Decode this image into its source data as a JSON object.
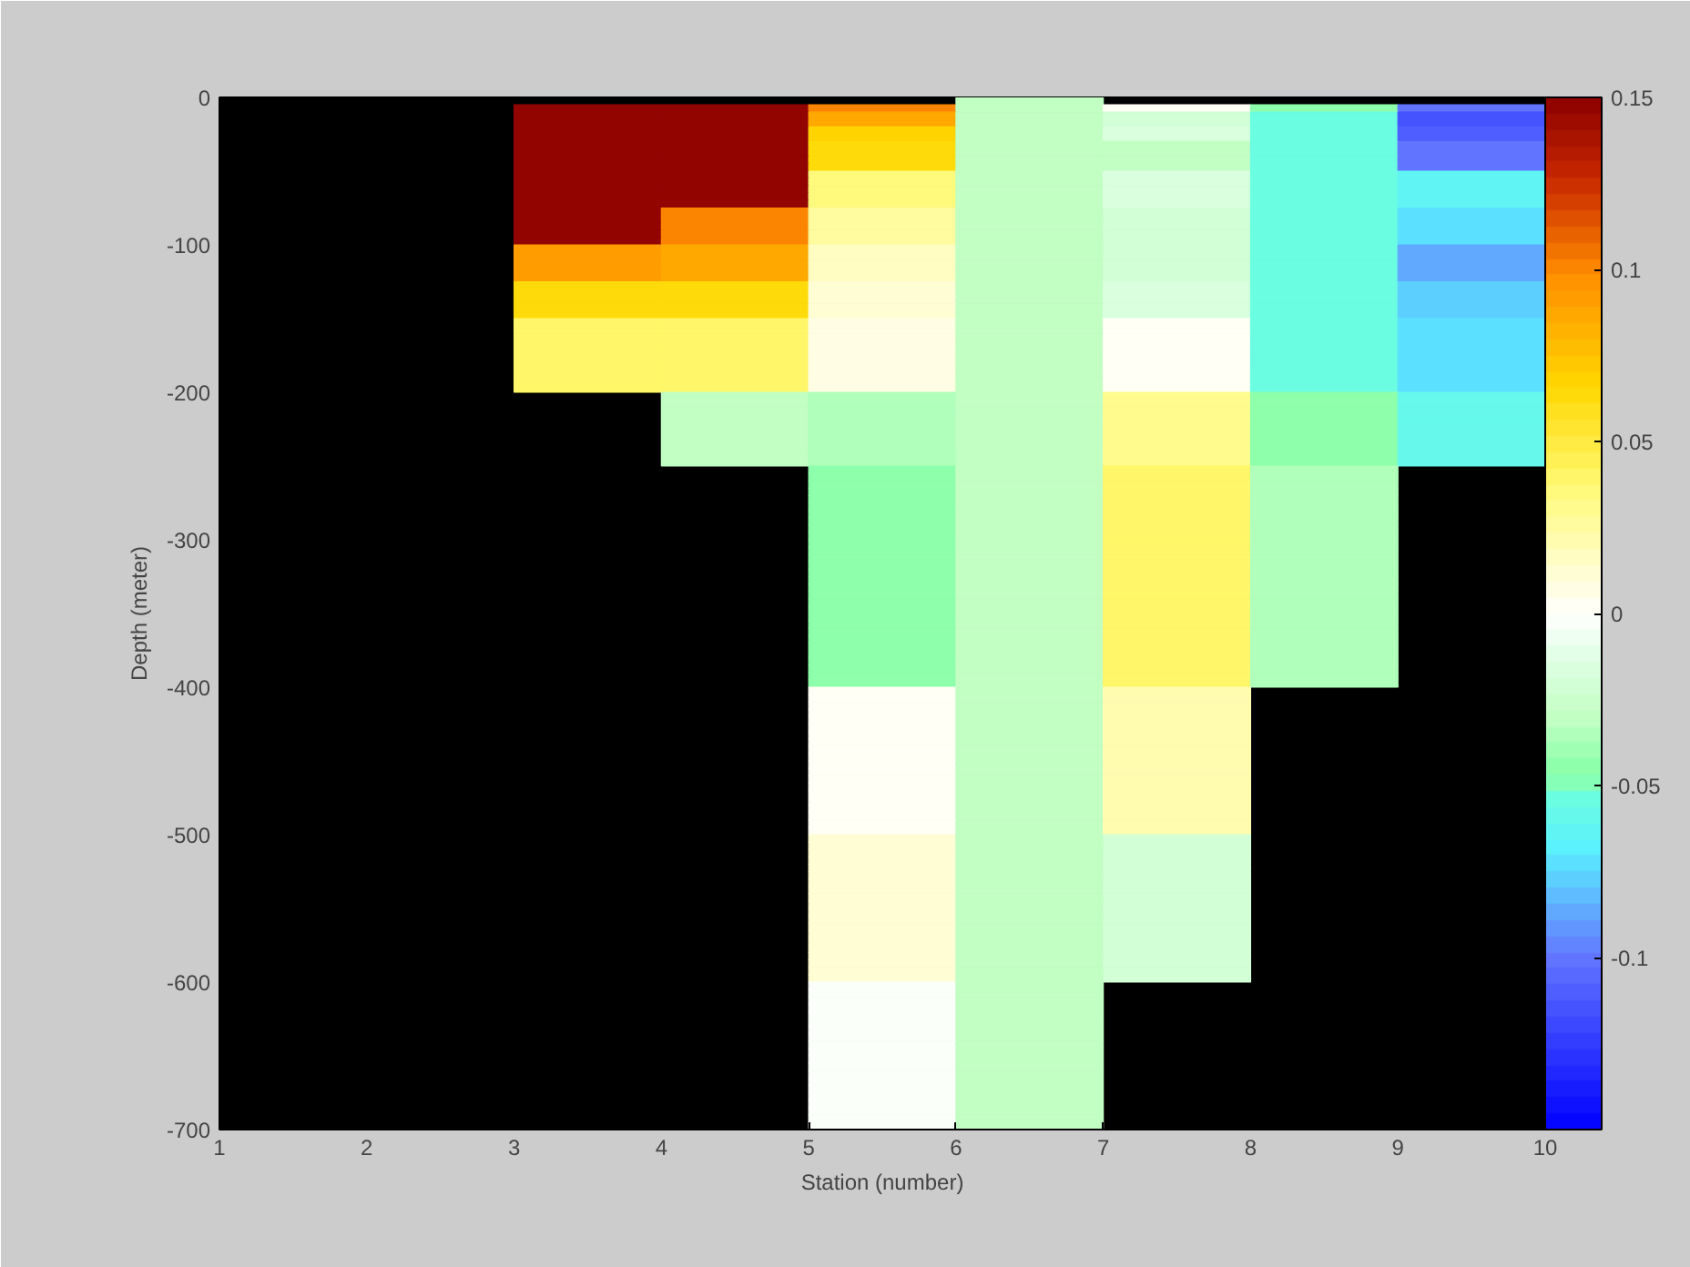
{
  "chart_data": {
    "type": "heatmap",
    "xlabel": "Station (number)",
    "ylabel": "Depth (meter)",
    "xlim": [
      1,
      10
    ],
    "xticks": [
      1,
      2,
      3,
      4,
      5,
      6,
      7,
      8,
      9,
      10
    ],
    "ylim": [
      -700,
      0
    ],
    "yticks": [
      -700,
      -600,
      -500,
      -400,
      -300,
      -200,
      -100,
      0
    ],
    "clim": [
      -0.15,
      0.15
    ],
    "cticks": [
      -0.1,
      -0.05,
      0,
      0.05,
      0.1,
      0.15
    ],
    "cells": [
      [
        null,
        null,
        null,
        null,
        null,
        -0.03,
        null,
        null,
        null
      ],
      [
        null,
        null,
        0.15,
        0.15,
        0.1,
        -0.03,
        0,
        -0.045,
        -0.1
      ],
      [
        null,
        null,
        0.15,
        0.15,
        0.085,
        -0.03,
        -0.02,
        -0.055,
        -0.115
      ],
      [
        null,
        null,
        0.15,
        0.15,
        0.085,
        -0.03,
        -0.02,
        -0.055,
        -0.115
      ],
      [
        null,
        null,
        0.15,
        0.15,
        0.07,
        -0.03,
        -0.015,
        -0.055,
        -0.11
      ],
      [
        null,
        null,
        0.15,
        0.15,
        0.07,
        -0.03,
        -0.015,
        -0.055,
        -0.11
      ],
      [
        null,
        null,
        0.15,
        0.15,
        0.065,
        -0.03,
        -0.03,
        -0.055,
        -0.1
      ],
      [
        null,
        null,
        0.15,
        0.15,
        0.065,
        -0.03,
        -0.03,
        -0.055,
        -0.1
      ],
      [
        null,
        null,
        0.15,
        0.15,
        0.065,
        -0.03,
        -0.03,
        -0.055,
        -0.1
      ],
      [
        null,
        null,
        0.15,
        0.15,
        0.065,
        -0.03,
        -0.03,
        -0.055,
        -0.1
      ],
      [
        null,
        null,
        0.15,
        0.15,
        0.035,
        -0.03,
        -0.015,
        -0.055,
        -0.065
      ],
      [
        null,
        null,
        0.15,
        0.15,
        0.035,
        -0.03,
        -0.015,
        -0.055,
        -0.065
      ],
      [
        null,
        null,
        0.15,
        0.15,
        0.035,
        -0.03,
        -0.015,
        -0.055,
        -0.065
      ],
      [
        null,
        null,
        0.15,
        0.15,
        0.035,
        -0.03,
        -0.015,
        -0.055,
        -0.065
      ],
      [
        null,
        null,
        0.15,
        0.15,
        0.035,
        -0.03,
        -0.015,
        -0.055,
        -0.065
      ],
      [
        null,
        null,
        0.15,
        0.1,
        0.025,
        -0.03,
        -0.02,
        -0.055,
        -0.075
      ],
      [
        null,
        null,
        0.15,
        0.1,
        0.025,
        -0.03,
        -0.02,
        -0.055,
        -0.075
      ],
      [
        null,
        null,
        0.15,
        0.1,
        0.025,
        -0.03,
        -0.02,
        -0.055,
        -0.075
      ],
      [
        null,
        null,
        0.15,
        0.1,
        0.025,
        -0.03,
        -0.02,
        -0.055,
        -0.075
      ],
      [
        null,
        null,
        0.15,
        0.1,
        0.025,
        -0.03,
        -0.02,
        -0.055,
        -0.075
      ],
      [
        null,
        null,
        0.09,
        0.085,
        0.017,
        -0.03,
        -0.02,
        -0.055,
        -0.085
      ],
      [
        null,
        null,
        0.09,
        0.085,
        0.017,
        -0.03,
        -0.02,
        -0.055,
        -0.085
      ],
      [
        null,
        null,
        0.09,
        0.085,
        0.017,
        -0.03,
        -0.02,
        -0.055,
        -0.085
      ],
      [
        null,
        null,
        0.09,
        0.085,
        0.017,
        -0.03,
        -0.02,
        -0.055,
        -0.085
      ],
      [
        null,
        null,
        0.09,
        0.085,
        0.017,
        -0.03,
        -0.02,
        -0.055,
        -0.085
      ],
      [
        null,
        null,
        0.065,
        0.065,
        0.012,
        -0.03,
        -0.015,
        -0.055,
        -0.078
      ],
      [
        null,
        null,
        0.065,
        0.065,
        0.012,
        -0.03,
        -0.015,
        -0.055,
        -0.078
      ],
      [
        null,
        null,
        0.065,
        0.065,
        0.012,
        -0.03,
        -0.015,
        -0.055,
        -0.078
      ],
      [
        null,
        null,
        0.065,
        0.065,
        0.012,
        -0.03,
        -0.015,
        -0.055,
        -0.078
      ],
      [
        null,
        null,
        0.065,
        0.065,
        0.012,
        -0.03,
        -0.015,
        -0.055,
        -0.078
      ],
      [
        null,
        null,
        0.04,
        0.04,
        0.005,
        -0.03,
        0.003,
        -0.052,
        -0.072
      ],
      [
        null,
        null,
        0.04,
        0.04,
        0.005,
        -0.03,
        0.003,
        -0.052,
        -0.072
      ],
      [
        null,
        null,
        0.04,
        0.04,
        0.005,
        -0.03,
        0.003,
        -0.052,
        -0.072
      ],
      [
        null,
        null,
        0.04,
        0.04,
        0.005,
        -0.03,
        0.003,
        -0.052,
        -0.072
      ],
      [
        null,
        null,
        0.04,
        0.04,
        0.005,
        -0.03,
        0.003,
        -0.052,
        -0.072
      ],
      [
        null,
        null,
        0.04,
        0.04,
        0.005,
        -0.03,
        0.003,
        -0.052,
        -0.072
      ],
      [
        null,
        null,
        0.04,
        0.04,
        0.005,
        -0.03,
        0.003,
        -0.052,
        -0.072
      ],
      [
        null,
        null,
        0.04,
        0.04,
        0.005,
        -0.03,
        0.003,
        -0.052,
        -0.072
      ],
      [
        null,
        null,
        0.04,
        0.04,
        0.005,
        -0.03,
        0.003,
        -0.052,
        -0.072
      ],
      [
        null,
        null,
        0.04,
        0.04,
        0.005,
        -0.03,
        0.003,
        -0.052,
        -0.072
      ],
      [
        null,
        null,
        null,
        -0.03,
        -0.035,
        -0.03,
        0.03,
        -0.045,
        -0.06
      ],
      [
        null,
        null,
        null,
        -0.03,
        -0.035,
        -0.03,
        0.03,
        -0.045,
        -0.06
      ],
      [
        null,
        null,
        null,
        -0.03,
        -0.035,
        -0.03,
        0.03,
        -0.045,
        -0.06
      ],
      [
        null,
        null,
        null,
        -0.03,
        -0.035,
        -0.03,
        0.03,
        -0.045,
        -0.06
      ],
      [
        null,
        null,
        null,
        -0.03,
        -0.035,
        -0.03,
        0.03,
        -0.045,
        -0.06
      ],
      [
        null,
        null,
        null,
        -0.03,
        -0.035,
        -0.03,
        0.03,
        -0.045,
        -0.06
      ],
      [
        null,
        null,
        null,
        -0.03,
        -0.035,
        -0.03,
        0.03,
        -0.045,
        -0.06
      ],
      [
        null,
        null,
        null,
        -0.03,
        -0.035,
        -0.03,
        0.03,
        -0.045,
        -0.06
      ],
      [
        null,
        null,
        null,
        -0.03,
        -0.035,
        -0.03,
        0.03,
        -0.045,
        -0.06
      ],
      [
        null,
        null,
        null,
        -0.03,
        -0.035,
        -0.03,
        0.03,
        -0.045,
        -0.06
      ],
      [
        null,
        null,
        null,
        null,
        -0.045,
        -0.03,
        0.04,
        -0.037,
        null
      ],
      [
        null,
        null,
        null,
        null,
        -0.045,
        -0.03,
        0.04,
        -0.037,
        null
      ],
      [
        null,
        null,
        null,
        null,
        -0.045,
        -0.03,
        0.04,
        -0.037,
        null
      ],
      [
        null,
        null,
        null,
        null,
        -0.045,
        -0.03,
        0.04,
        -0.037,
        null
      ],
      [
        null,
        null,
        null,
        null,
        -0.045,
        -0.03,
        0.04,
        -0.037,
        null
      ],
      [
        null,
        null,
        null,
        null,
        -0.045,
        -0.03,
        0.04,
        -0.037,
        null
      ],
      [
        null,
        null,
        null,
        null,
        -0.045,
        -0.03,
        0.04,
        -0.037,
        null
      ],
      [
        null,
        null,
        null,
        null,
        -0.045,
        -0.03,
        0.04,
        -0.037,
        null
      ],
      [
        null,
        null,
        null,
        null,
        -0.045,
        -0.03,
        0.04,
        -0.037,
        null
      ],
      [
        null,
        null,
        null,
        null,
        -0.045,
        -0.03,
        0.04,
        -0.037,
        null
      ],
      [
        null,
        null,
        null,
        null,
        -0.045,
        -0.03,
        0.04,
        -0.037,
        null
      ],
      [
        null,
        null,
        null,
        null,
        -0.045,
        -0.03,
        0.04,
        -0.037,
        null
      ],
      [
        null,
        null,
        null,
        null,
        -0.045,
        -0.03,
        0.04,
        -0.037,
        null
      ],
      [
        null,
        null,
        null,
        null,
        -0.045,
        -0.03,
        0.04,
        -0.037,
        null
      ],
      [
        null,
        null,
        null,
        null,
        -0.045,
        -0.03,
        0.04,
        -0.037,
        null
      ],
      [
        null,
        null,
        null,
        null,
        -0.045,
        -0.03,
        0.04,
        -0.037,
        null
      ],
      [
        null,
        null,
        null,
        null,
        -0.045,
        -0.03,
        0.04,
        -0.037,
        null
      ],
      [
        null,
        null,
        null,
        null,
        -0.045,
        -0.03,
        0.04,
        -0.037,
        null
      ],
      [
        null,
        null,
        null,
        null,
        -0.045,
        -0.03,
        0.04,
        -0.037,
        null
      ],
      [
        null,
        null,
        null,
        null,
        -0.045,
        -0.03,
        0.04,
        -0.037,
        null
      ],
      [
        null,
        null,
        null,
        null,
        -0.045,
        -0.03,
        0.04,
        -0.037,
        null
      ],
      [
        null,
        null,
        null,
        null,
        -0.045,
        -0.03,
        0.04,
        -0.037,
        null
      ],
      [
        null,
        null,
        null,
        null,
        -0.045,
        -0.03,
        0.04,
        -0.037,
        null
      ],
      [
        null,
        null,
        null,
        null,
        -0.045,
        -0.03,
        0.04,
        -0.037,
        null
      ],
      [
        null,
        null,
        null,
        null,
        -0.045,
        -0.03,
        0.04,
        -0.037,
        null
      ],
      [
        null,
        null,
        null,
        null,
        -0.045,
        -0.03,
        0.04,
        -0.037,
        null
      ],
      [
        null,
        null,
        null,
        null,
        -0.045,
        -0.03,
        0.04,
        -0.037,
        null
      ],
      [
        null,
        null,
        null,
        null,
        -0.045,
        -0.03,
        0.04,
        -0.037,
        null
      ],
      [
        null,
        null,
        null,
        null,
        -0.045,
        -0.03,
        0.04,
        -0.037,
        null
      ],
      [
        null,
        null,
        null,
        null,
        -0.045,
        -0.03,
        0.04,
        -0.037,
        null
      ],
      [
        null,
        null,
        null,
        null,
        0.004,
        -0.03,
        0.02,
        null,
        null
      ],
      [
        null,
        null,
        null,
        null,
        0.004,
        -0.03,
        0.02,
        null,
        null
      ],
      [
        null,
        null,
        null,
        null,
        0.004,
        -0.03,
        0.02,
        null,
        null
      ],
      [
        null,
        null,
        null,
        null,
        0.004,
        -0.03,
        0.02,
        null,
        null
      ],
      [
        null,
        null,
        null,
        null,
        0.004,
        -0.03,
        0.02,
        null,
        null
      ],
      [
        null,
        null,
        null,
        null,
        0.004,
        -0.03,
        0.02,
        null,
        null
      ],
      [
        null,
        null,
        null,
        null,
        0.004,
        -0.03,
        0.02,
        null,
        null
      ],
      [
        null,
        null,
        null,
        null,
        0.004,
        -0.03,
        0.02,
        null,
        null
      ],
      [
        null,
        null,
        null,
        null,
        0.004,
        -0.03,
        0.02,
        null,
        null
      ],
      [
        null,
        null,
        null,
        null,
        0.004,
        -0.03,
        0.02,
        null,
        null
      ],
      [
        null,
        null,
        null,
        null,
        0.004,
        -0.03,
        0.02,
        null,
        null
      ],
      [
        null,
        null,
        null,
        null,
        0.004,
        -0.03,
        0.02,
        null,
        null
      ],
      [
        null,
        null,
        null,
        null,
        0.004,
        -0.03,
        0.02,
        null,
        null
      ],
      [
        null,
        null,
        null,
        null,
        0.004,
        -0.03,
        0.02,
        null,
        null
      ],
      [
        null,
        null,
        null,
        null,
        0.004,
        -0.03,
        0.02,
        null,
        null
      ],
      [
        null,
        null,
        null,
        null,
        0.004,
        -0.03,
        0.02,
        null,
        null
      ],
      [
        null,
        null,
        null,
        null,
        0.004,
        -0.03,
        0.02,
        null,
        null
      ],
      [
        null,
        null,
        null,
        null,
        0.004,
        -0.03,
        0.02,
        null,
        null
      ],
      [
        null,
        null,
        null,
        null,
        0.004,
        -0.03,
        0.02,
        null,
        null
      ],
      [
        null,
        null,
        null,
        null,
        0.004,
        -0.03,
        0.02,
        null,
        null
      ],
      [
        null,
        null,
        null,
        null,
        0.012,
        -0.03,
        -0.02,
        null,
        null
      ],
      [
        null,
        null,
        null,
        null,
        0.012,
        -0.03,
        -0.02,
        null,
        null
      ],
      [
        null,
        null,
        null,
        null,
        0.012,
        -0.03,
        -0.02,
        null,
        null
      ],
      [
        null,
        null,
        null,
        null,
        0.012,
        -0.03,
        -0.02,
        null,
        null
      ],
      [
        null,
        null,
        null,
        null,
        0.012,
        -0.03,
        -0.02,
        null,
        null
      ],
      [
        null,
        null,
        null,
        null,
        0.012,
        -0.03,
        -0.02,
        null,
        null
      ],
      [
        null,
        null,
        null,
        null,
        0.012,
        -0.03,
        -0.02,
        null,
        null
      ],
      [
        null,
        null,
        null,
        null,
        0.012,
        -0.03,
        -0.02,
        null,
        null
      ],
      [
        null,
        null,
        null,
        null,
        0.012,
        -0.03,
        -0.02,
        null,
        null
      ],
      [
        null,
        null,
        null,
        null,
        0.012,
        -0.03,
        -0.02,
        null,
        null
      ],
      [
        null,
        null,
        null,
        null,
        0.012,
        -0.03,
        -0.02,
        null,
        null
      ],
      [
        null,
        null,
        null,
        null,
        0.012,
        -0.03,
        -0.02,
        null,
        null
      ],
      [
        null,
        null,
        null,
        null,
        0.012,
        -0.03,
        -0.02,
        null,
        null
      ],
      [
        null,
        null,
        null,
        null,
        0.012,
        -0.03,
        -0.02,
        null,
        null
      ],
      [
        null,
        null,
        null,
        null,
        0.012,
        -0.03,
        -0.02,
        null,
        null
      ],
      [
        null,
        null,
        null,
        null,
        0.012,
        -0.03,
        -0.02,
        null,
        null
      ],
      [
        null,
        null,
        null,
        null,
        0.012,
        -0.03,
        -0.02,
        null,
        null
      ],
      [
        null,
        null,
        null,
        null,
        0.012,
        -0.03,
        -0.02,
        null,
        null
      ],
      [
        null,
        null,
        null,
        null,
        0.012,
        -0.03,
        -0.02,
        null,
        null
      ],
      [
        null,
        null,
        null,
        null,
        0.012,
        -0.03,
        -0.02,
        null,
        null
      ],
      [
        null,
        null,
        null,
        null,
        -0.003,
        -0.03,
        null,
        null,
        null
      ],
      [
        null,
        null,
        null,
        null,
        -0.003,
        -0.03,
        null,
        null,
        null
      ],
      [
        null,
        null,
        null,
        null,
        -0.003,
        -0.03,
        null,
        null,
        null
      ],
      [
        null,
        null,
        null,
        null,
        -0.003,
        -0.03,
        null,
        null,
        null
      ],
      [
        null,
        null,
        null,
        null,
        -0.003,
        -0.03,
        null,
        null,
        null
      ],
      [
        null,
        null,
        null,
        null,
        -0.003,
        -0.03,
        null,
        null,
        null
      ],
      [
        null,
        null,
        null,
        null,
        -0.003,
        -0.03,
        null,
        null,
        null
      ],
      [
        null,
        null,
        null,
        null,
        -0.003,
        -0.03,
        null,
        null,
        null
      ],
      [
        null,
        null,
        null,
        null,
        -0.003,
        -0.03,
        null,
        null,
        null
      ],
      [
        null,
        null,
        null,
        null,
        -0.003,
        -0.03,
        null,
        null,
        null
      ],
      [
        null,
        null,
        null,
        null,
        -0.003,
        -0.03,
        null,
        null,
        null
      ],
      [
        null,
        null,
        null,
        null,
        -0.003,
        -0.03,
        null,
        null,
        null
      ],
      [
        null,
        null,
        null,
        null,
        -0.003,
        -0.03,
        null,
        null,
        null
      ],
      [
        null,
        null,
        null,
        null,
        -0.003,
        -0.03,
        null,
        null,
        null
      ],
      [
        null,
        null,
        null,
        null,
        -0.003,
        -0.03,
        null,
        null,
        null
      ],
      [
        null,
        null,
        null,
        null,
        -0.003,
        -0.03,
        null,
        null,
        null
      ],
      [
        null,
        null,
        null,
        null,
        -0.003,
        -0.03,
        null,
        null,
        null
      ],
      [
        null,
        null,
        null,
        null,
        -0.003,
        -0.03,
        null,
        null,
        null
      ],
      [
        null,
        null,
        null,
        null,
        -0.003,
        -0.03,
        null,
        null,
        null
      ],
      [
        null,
        null,
        null,
        null,
        -0.003,
        -0.03,
        null,
        null,
        null
      ]
    ]
  }
}
